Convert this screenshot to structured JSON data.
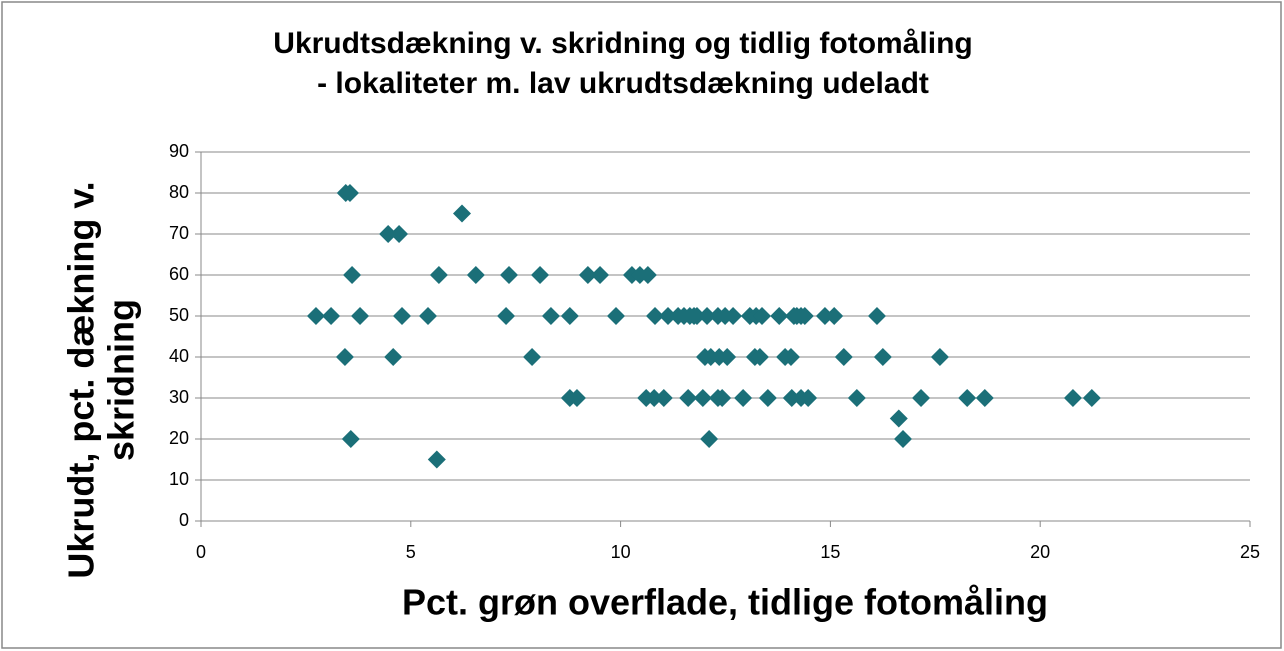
{
  "chart_data": {
    "type": "scatter",
    "title": [
      "Ukrudtsdækning v. skridning og tidlig fotomåling",
      "- lokaliteter m. lav ukrudtsdækning udeladt"
    ],
    "x_label": "Pct. grøn overflade, tidlige fotomåling",
    "y_label": [
      "Ukrudt, pct. dækning v.",
      "skridning"
    ],
    "color": "#1b6f78",
    "grid": true,
    "xlim": [
      0,
      25
    ],
    "xticks": [
      0,
      5,
      10,
      15,
      20,
      25
    ],
    "ylim": [
      0,
      90
    ],
    "yticks": [
      0,
      10,
      20,
      30,
      40,
      50,
      60,
      70,
      80,
      90
    ],
    "x": [
      3.45,
      3.55,
      6.22,
      4.46,
      4.72,
      3.6,
      5.67,
      6.55,
      7.34,
      8.08,
      9.22,
      9.51,
      10.27,
      10.46,
      10.65,
      2.74,
      3.1,
      3.79,
      4.79,
      5.41,
      7.27,
      8.34,
      8.79,
      9.89,
      10.82,
      11.13,
      11.37,
      11.51,
      11.65,
      11.75,
      11.82,
      12.06,
      12.32,
      12.49,
      12.68,
      13.08,
      13.23,
      13.37,
      13.78,
      14.13,
      14.2,
      14.3,
      14.39,
      14.87,
      15.09,
      16.11,
      3.43,
      4.58,
      7.89,
      12.01,
      12.15,
      12.35,
      12.54,
      13.2,
      13.32,
      13.92,
      14.06,
      15.32,
      16.25,
      17.61,
      8.79,
      8.96,
      10.61,
      10.8,
      11.03,
      11.61,
      11.96,
      12.32,
      12.42,
      12.92,
      13.51,
      14.08,
      14.3,
      14.47,
      15.63,
      17.16,
      18.26,
      18.68,
      20.78,
      21.23,
      16.63,
      3.57,
      12.11,
      16.73,
      5.62
    ],
    "values": [
      80,
      80,
      75,
      70,
      70,
      60,
      60,
      60,
      60,
      60,
      60,
      60,
      60,
      60,
      60,
      50,
      50,
      50,
      50,
      50,
      50,
      50,
      50,
      50,
      50,
      50,
      50,
      50,
      50,
      50,
      50,
      50,
      50,
      50,
      50,
      50,
      50,
      50,
      50,
      50,
      50,
      50,
      50,
      50,
      50,
      50,
      40,
      40,
      40,
      40,
      40,
      40,
      40,
      40,
      40,
      40,
      40,
      40,
      40,
      40,
      30,
      30,
      30,
      30,
      30,
      30,
      30,
      30,
      30,
      30,
      30,
      30,
      30,
      30,
      30,
      30,
      30,
      30,
      30,
      30,
      25,
      20,
      20,
      20,
      15
    ]
  }
}
